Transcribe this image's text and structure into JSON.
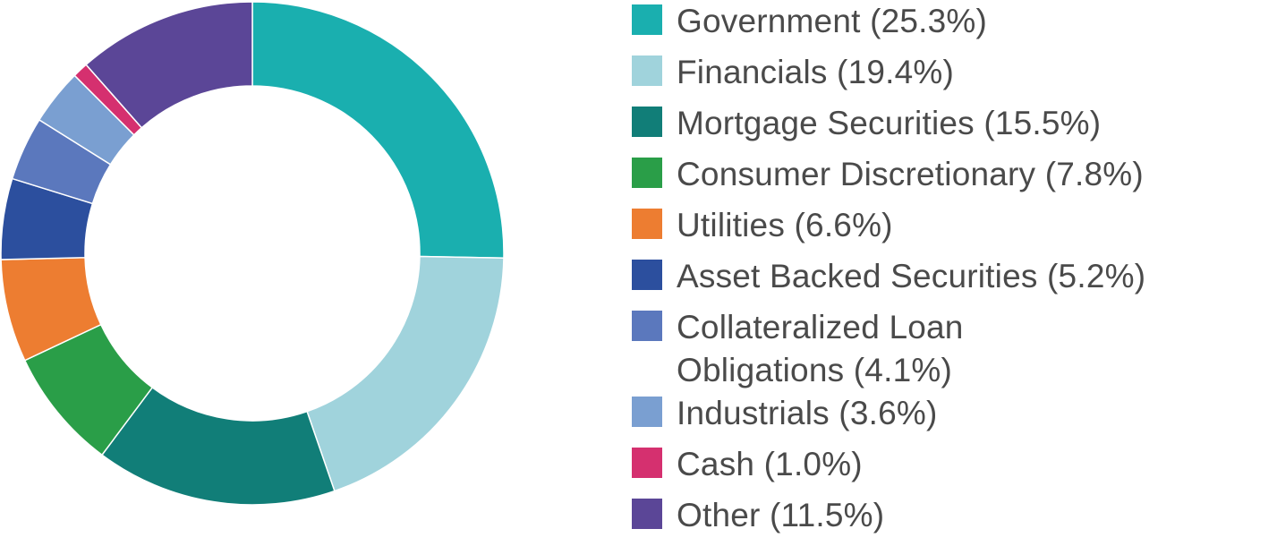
{
  "chart_data": {
    "type": "pie",
    "variant": "donut",
    "legend_position": "right",
    "slices": [
      {
        "label": "Government (25.3%)",
        "name": "Government",
        "value": 25.3,
        "color": "#1aafaf"
      },
      {
        "label": "Financials (19.4%)",
        "name": "Financials",
        "value": 19.4,
        "color": "#a0d3dc"
      },
      {
        "label": "Mortgage Securities (15.5%)",
        "name": "Mortgage Securities",
        "value": 15.5,
        "color": "#117e78"
      },
      {
        "label": "Consumer Discretionary (7.8%)",
        "name": "Consumer Discretionary",
        "value": 7.8,
        "color": "#2a9e48"
      },
      {
        "label": "Utilities (6.6%)",
        "name": "Utilities",
        "value": 6.6,
        "color": "#ed7d31"
      },
      {
        "label": "Asset Backed Securities (5.2%)",
        "name": "Asset Backed Securities",
        "value": 5.2,
        "color": "#2c4f9e"
      },
      {
        "label": "Collateralized Loan Obligations (4.1%)",
        "name": "Collateralized Loan Obligations",
        "value": 4.1,
        "color": "#5b78bd"
      },
      {
        "label": "Industrials (3.6%)",
        "name": "Industrials",
        "value": 3.6,
        "color": "#7a9fd1"
      },
      {
        "label": "Cash (1.0%)",
        "name": "Cash",
        "value": 1.0,
        "color": "#d5306f"
      },
      {
        "label": "Other (11.5%)",
        "name": "Other",
        "value": 11.5,
        "color": "#5b4697"
      }
    ]
  }
}
